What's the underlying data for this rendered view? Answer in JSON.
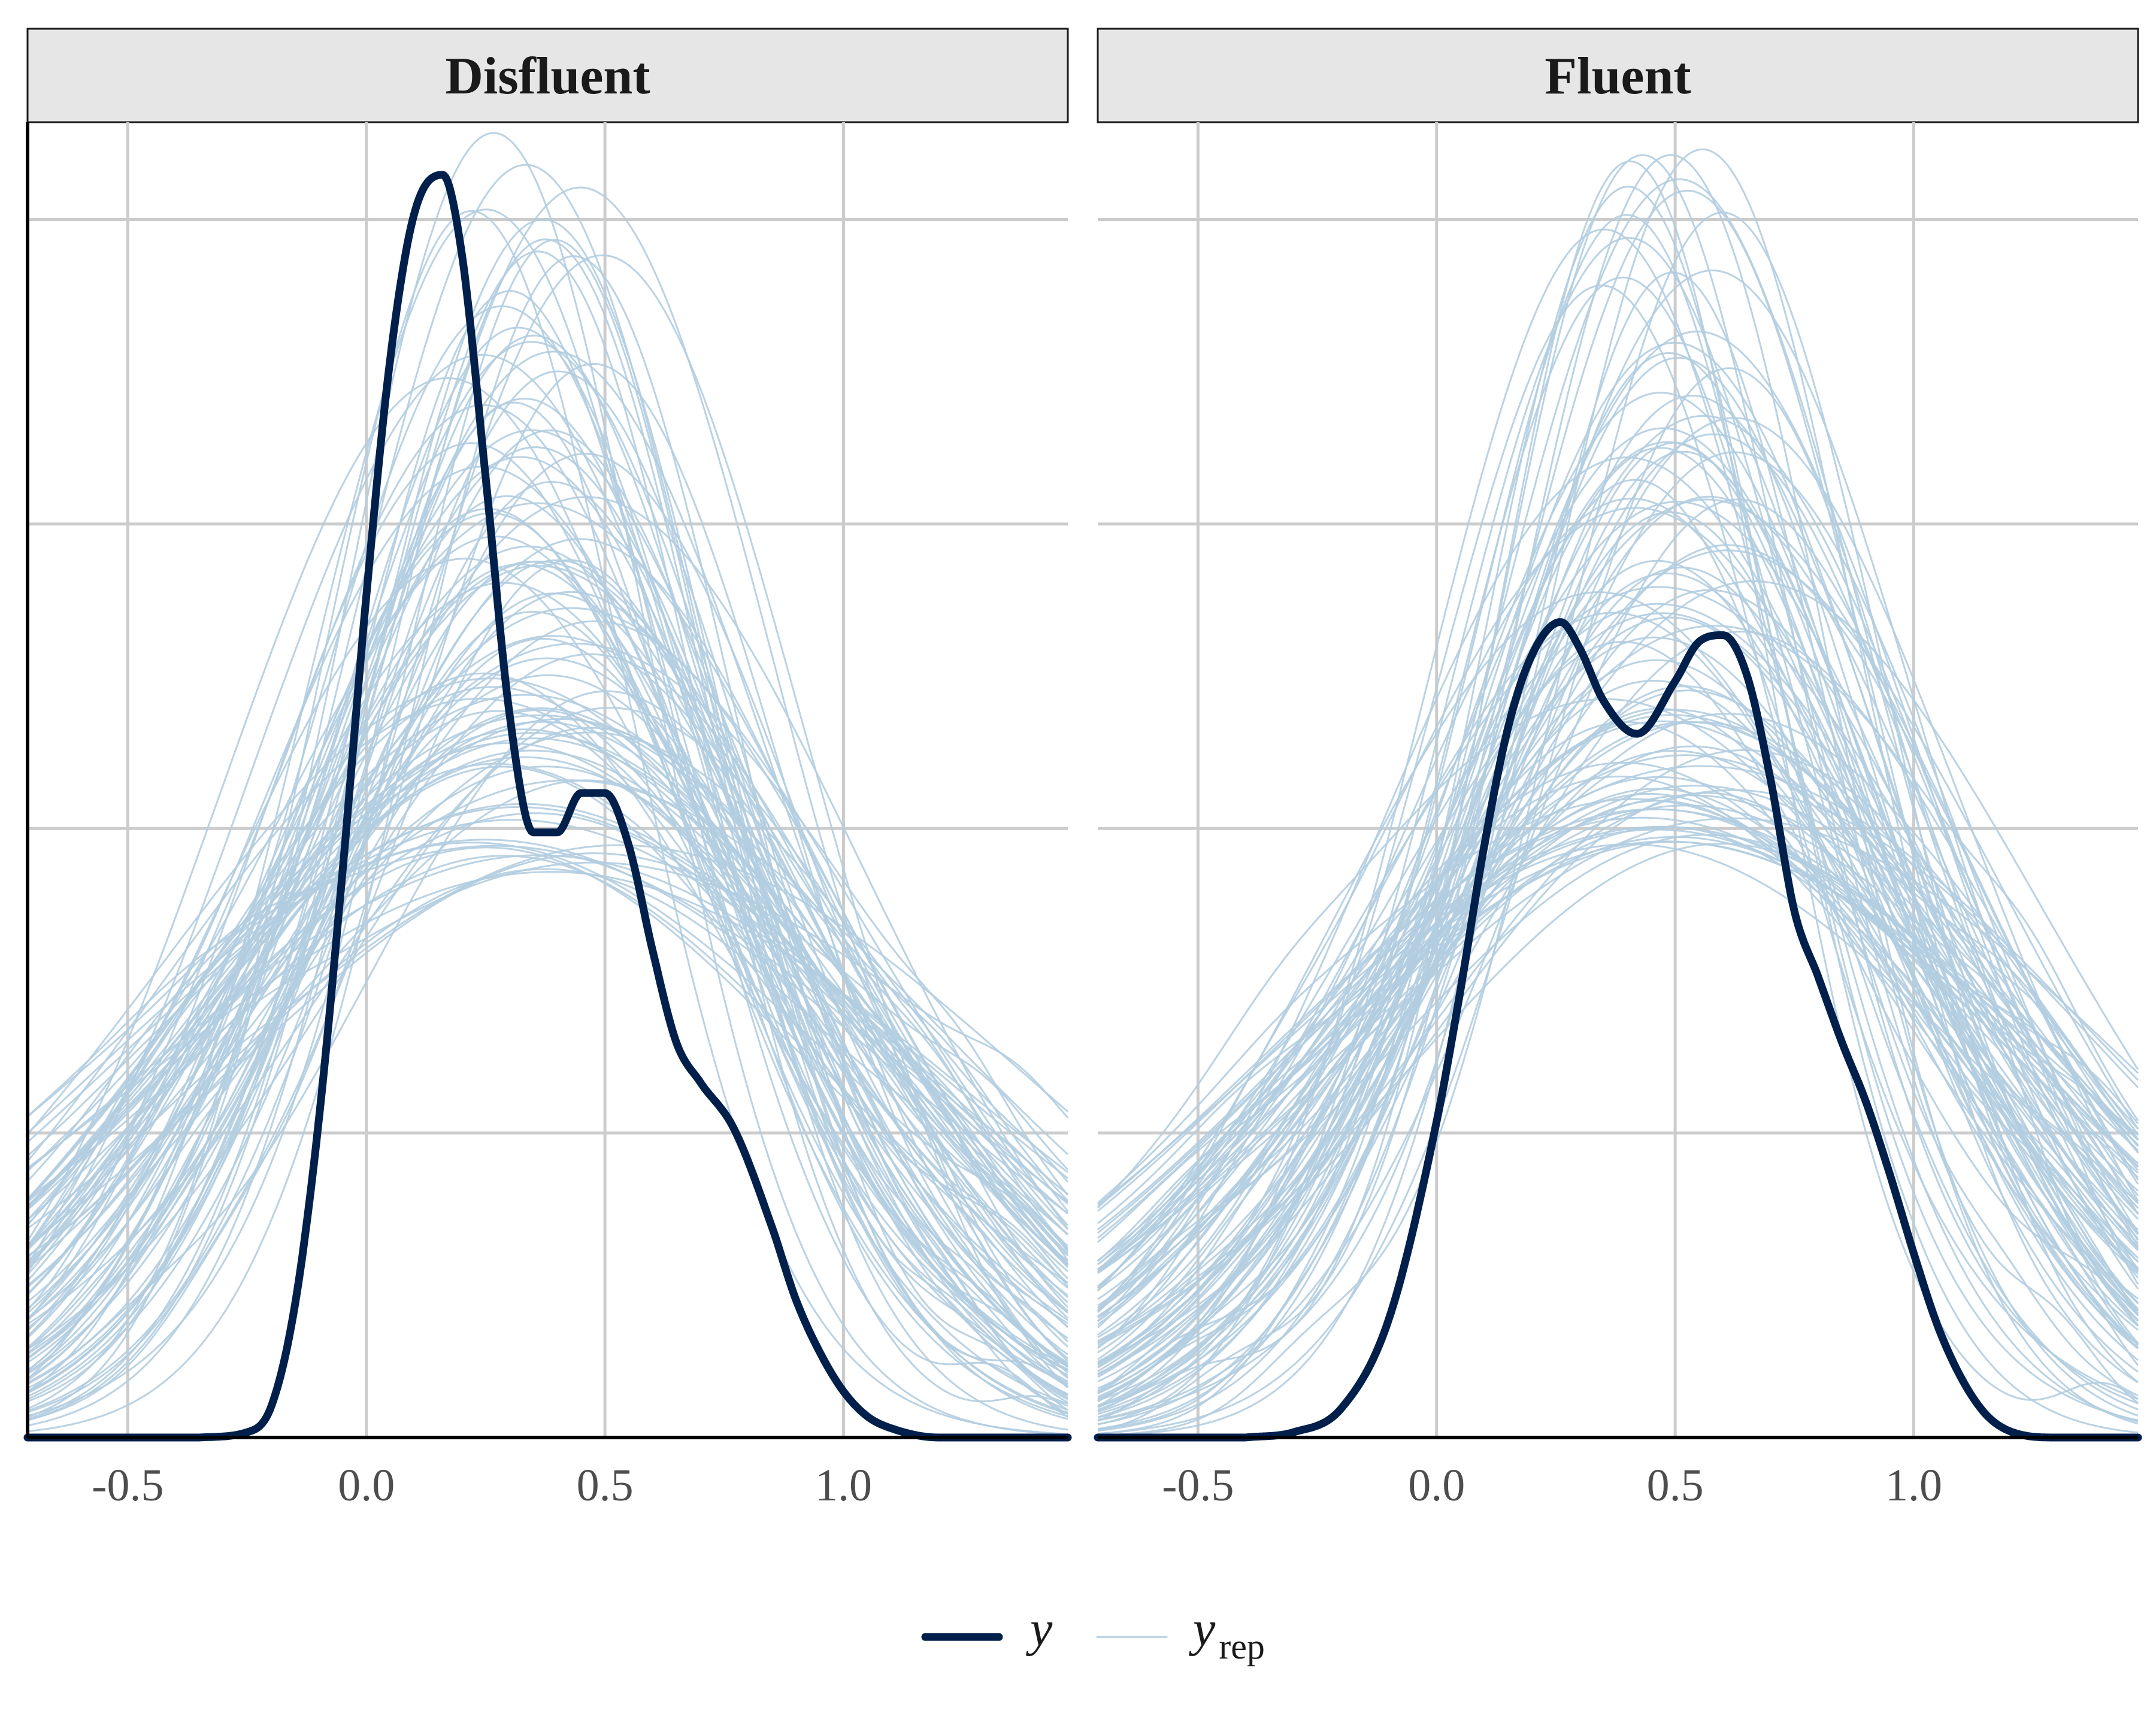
{
  "chart_data": {
    "type": "line",
    "chart_kind": "posterior predictive density overlay",
    "x_range": [
      -0.71,
      1.47
    ],
    "y_range": [
      0,
      1
    ],
    "x_ticks": [
      -0.5,
      0.0,
      0.5,
      1.0
    ],
    "x_tick_labels": [
      "-0.5",
      "0.0",
      "0.5",
      "1.0"
    ],
    "y_gridlines": [
      0.2315,
      0.463,
      0.6945,
      0.926
    ],
    "grid": true,
    "legend_position": "bottom",
    "legend": [
      {
        "key": "y",
        "label": "y",
        "subscript": "",
        "color": "#011f4b"
      },
      {
        "key": "yrep",
        "label": "y",
        "subscript": "rep",
        "color": "#b3cde0"
      }
    ],
    "colors": {
      "y": "#011f4b",
      "yrep": "#b3cde0",
      "strip_fill": "#e6e6e6",
      "grid": "#cccccc"
    },
    "n_replicates": 100,
    "panels": [
      {
        "title": "Disfluent",
        "y_observed": {
          "x": [
            -0.35,
            -0.25,
            -0.2,
            -0.15,
            -0.1,
            -0.05,
            0.0,
            0.05,
            0.1,
            0.16,
            0.2,
            0.25,
            0.3,
            0.35,
            0.4,
            0.45,
            0.5,
            0.55,
            0.6,
            0.65,
            0.7,
            0.77,
            0.85,
            0.9,
            0.95,
            1.0,
            1.05,
            1.1,
            1.2,
            1.3,
            1.47
          ],
          "y": [
            0.0,
            0.004,
            0.023,
            0.1,
            0.24,
            0.43,
            0.64,
            0.82,
            0.93,
            0.96,
            0.9,
            0.73,
            0.55,
            0.46,
            0.46,
            0.49,
            0.49,
            0.45,
            0.37,
            0.3,
            0.27,
            0.235,
            0.16,
            0.105,
            0.065,
            0.035,
            0.016,
            0.007,
            0.0,
            0.0,
            0.0
          ]
        },
        "replicate_centers": {
          "center_range": [
            0.25,
            0.45
          ],
          "min_peak": 0.43,
          "max_peak": 1.0
        }
      },
      {
        "title": "Fluent",
        "y_observed": {
          "x": [
            -0.4,
            -0.3,
            -0.2,
            -0.1,
            0.0,
            0.05,
            0.1,
            0.15,
            0.2,
            0.26,
            0.3,
            0.35,
            0.42,
            0.5,
            0.55,
            0.6,
            0.65,
            0.7,
            0.75,
            0.8,
            0.85,
            0.9,
            0.95,
            1.0,
            1.05,
            1.1,
            1.15,
            1.2,
            1.3,
            1.47
          ],
          "y": [
            0.0,
            0.004,
            0.022,
            0.09,
            0.24,
            0.34,
            0.45,
            0.54,
            0.595,
            0.62,
            0.6,
            0.56,
            0.535,
            0.575,
            0.605,
            0.61,
            0.58,
            0.5,
            0.4,
            0.35,
            0.3,
            0.255,
            0.2,
            0.14,
            0.085,
            0.045,
            0.018,
            0.005,
            0.0,
            0.0
          ]
        },
        "replicate_centers": {
          "center_range": [
            0.42,
            0.58
          ],
          "min_peak": 0.45,
          "max_peak": 0.98
        }
      }
    ]
  }
}
